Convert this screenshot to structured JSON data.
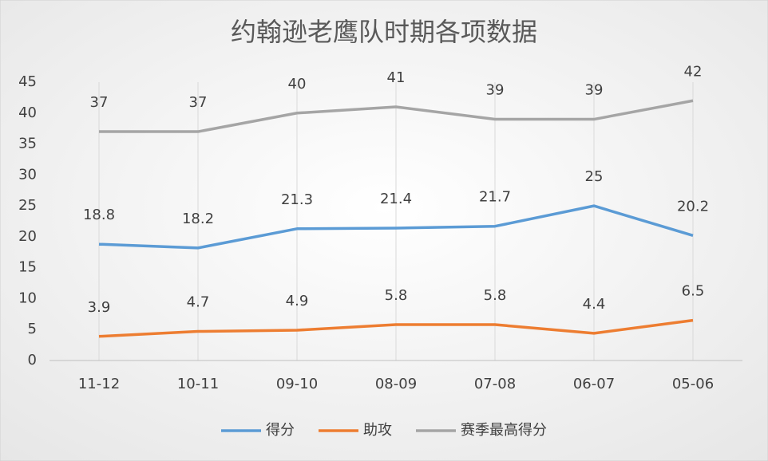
{
  "chart_data": {
    "type": "line",
    "title": "约翰逊老鹰队时期各项数据",
    "categories": [
      "11-12",
      "10-11",
      "09-10",
      "08-09",
      "07-08",
      "06-07",
      "05-06"
    ],
    "series": [
      {
        "name": "得分",
        "color": "#5b9bd5",
        "values": [
          18.8,
          18.2,
          21.3,
          21.4,
          21.7,
          25,
          20.2
        ]
      },
      {
        "name": "助攻",
        "color": "#ed7d31",
        "values": [
          3.9,
          4.7,
          4.9,
          5.8,
          5.8,
          4.4,
          6.5
        ]
      },
      {
        "name": "赛季最高得分",
        "color": "#a5a5a5",
        "values": [
          37,
          37,
          40,
          41,
          39,
          39,
          42
        ]
      }
    ],
    "ylim": [
      0,
      45
    ],
    "yticks": [
      0,
      5,
      10,
      15,
      20,
      25,
      30,
      35,
      40,
      45
    ],
    "grid": "x",
    "legend": "bottom"
  }
}
